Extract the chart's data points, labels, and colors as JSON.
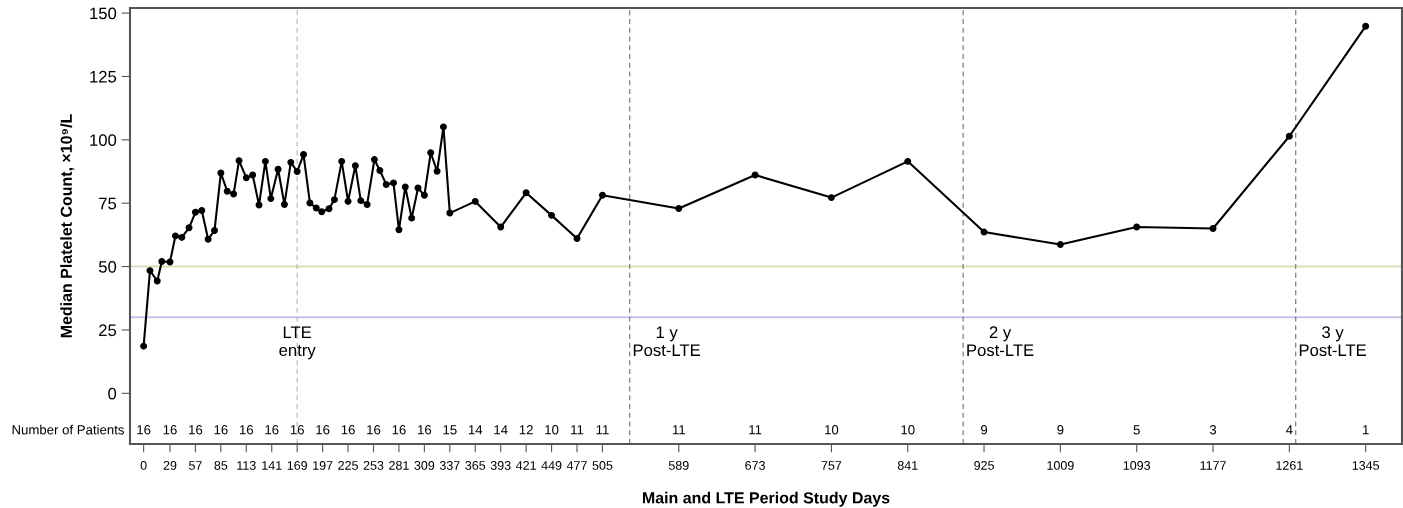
{
  "chart_data": {
    "type": "line",
    "xlabel": "Main and LTE Period Study Days",
    "ylabel": "Median Platelet Count, ×10⁹/L",
    "xlim": [
      -15,
      1385
    ],
    "ylim": [
      -20,
      152
    ],
    "xticks": [
      0,
      29,
      57,
      85,
      113,
      141,
      169,
      197,
      225,
      253,
      281,
      309,
      337,
      365,
      393,
      421,
      449,
      477,
      505,
      589,
      673,
      757,
      841,
      925,
      1009,
      1093,
      1177,
      1261,
      1345
    ],
    "yticks": [
      0,
      25,
      50,
      75,
      100,
      125,
      150
    ],
    "grid": false,
    "marker": "circle",
    "line_style": "solid",
    "series": [
      {
        "color": "#000000",
        "x": [
          0,
          7,
          15,
          20,
          29,
          35,
          42,
          50,
          57,
          64,
          71,
          78,
          85,
          92,
          99,
          105,
          113,
          120,
          127,
          134,
          140,
          148,
          155,
          162,
          169,
          176,
          183,
          190,
          196,
          204,
          210,
          218,
          225,
          233,
          239,
          246,
          254,
          260,
          267,
          275,
          281,
          288,
          295,
          302,
          309,
          316,
          323,
          330,
          337,
          365,
          393,
          421,
          449,
          477,
          505,
          589,
          673,
          757,
          841,
          925,
          1009,
          1093,
          1177,
          1261,
          1345
        ],
        "values": [
          18.6,
          48.4,
          44.3,
          52.0,
          51.8,
          62.1,
          61.5,
          65.3,
          71.4,
          72.1,
          60.8,
          64.2,
          86.9,
          79.7,
          78.6,
          91.8,
          85.0,
          86.1,
          74.3,
          91.5,
          76.8,
          88.4,
          74.5,
          91.1,
          87.5,
          94.2,
          75.1,
          73.1,
          71.6,
          72.8,
          76.4,
          91.5,
          75.7,
          89.8,
          76.0,
          74.5,
          92.2,
          87.9,
          82.4,
          83.0,
          64.5,
          81.4,
          69.1,
          81.0,
          78.1,
          94.9,
          87.6,
          105.1,
          71.1,
          75.7,
          65.6,
          79.1,
          70.2,
          61.1,
          78.1,
          72.9,
          86.1,
          77.2,
          91.5,
          63.6,
          58.7,
          65.6,
          65.0,
          101.4,
          144.8
        ]
      }
    ],
    "ref_lines": [
      {
        "axis": "y",
        "value": 50,
        "color": "#d8dfb8",
        "line_style": "solid"
      },
      {
        "axis": "y",
        "value": 30,
        "color": "#c4c4e8",
        "line_style": "solid"
      },
      {
        "axis": "x",
        "value": 169,
        "label": "LTE\nentry",
        "color": "#bdbdbd",
        "line_style": "dashed"
      },
      {
        "axis": "x",
        "value": 535,
        "label": "1 y\nPost-LTE",
        "color": "#808080",
        "line_style": "dashed"
      },
      {
        "axis": "x",
        "value": 902,
        "label": "2 y\nPost-LTE",
        "color": "#808080",
        "line_style": "dashed"
      },
      {
        "axis": "x",
        "value": 1268,
        "label": "3 y\nPost-LTE",
        "color": "#808080",
        "line_style": "dashed"
      }
    ],
    "annotations": [
      "Number of Patients",
      "16",
      "16",
      "16",
      "16",
      "16",
      "16",
      "16",
      "16",
      "16",
      "16",
      "16",
      "16",
      "15",
      "14",
      "14",
      "12",
      "10",
      "11",
      "11",
      "11",
      "11",
      "10",
      "10",
      "9",
      "9",
      "5",
      "3",
      "4",
      "1"
    ]
  }
}
